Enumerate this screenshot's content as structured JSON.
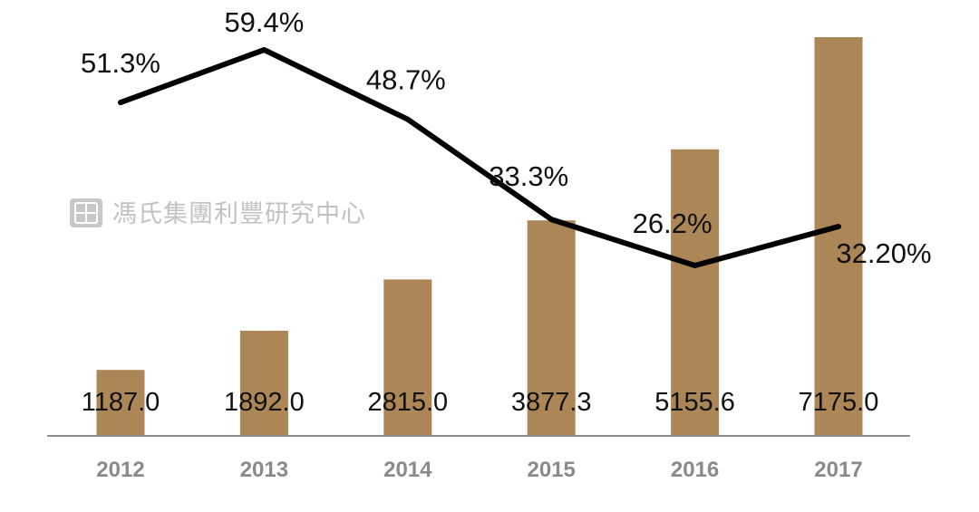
{
  "watermark": "馮氏集團利豐研究中心",
  "colors": {
    "bar": "#AC8656",
    "line": "#000000",
    "axis": "#8c8c8c",
    "watermark": "#c2c2c2"
  },
  "chart_data": {
    "type": "bar",
    "categories": [
      "2012",
      "2013",
      "2014",
      "2015",
      "2016",
      "2017"
    ],
    "series": [
      {
        "type": "bar",
        "values": [
          1187.0,
          1892.0,
          2815.0,
          3877.3,
          5155.6,
          7175.0
        ],
        "labels": [
          "1187.0",
          "1892.0",
          "2815.0",
          "3877.3",
          "5155.6",
          "7175.0"
        ]
      },
      {
        "type": "line",
        "values": [
          51.3,
          59.4,
          48.7,
          33.3,
          26.2,
          32.2
        ],
        "labels": [
          "51.3%",
          "59.4%",
          "48.7%",
          "33.3%",
          "26.2%",
          "32.20%"
        ]
      }
    ],
    "y_bar_range": [
      0,
      7175
    ],
    "y_line_range": [
      20,
      60
    ],
    "grid": false,
    "legend": "none"
  }
}
